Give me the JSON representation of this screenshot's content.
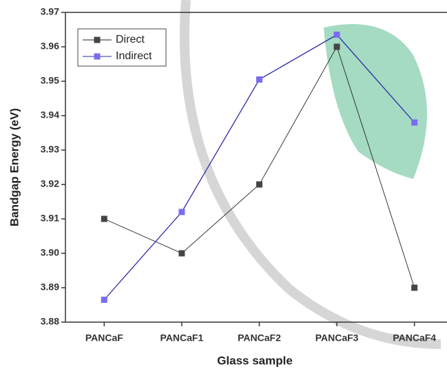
{
  "chart_data": {
    "type": "line",
    "x_label": "Glass sample",
    "y_label": "Bandgap Energy (eV)",
    "categories": [
      "PANCaF",
      "PANCaF1",
      "PANCaF2",
      "PANCaF3",
      "PANCaF4"
    ],
    "series": [
      {
        "name": "Direct",
        "color": "#454545",
        "line_color": "#222222",
        "values": [
          3.91,
          3.9,
          3.92,
          3.96,
          3.89
        ]
      },
      {
        "name": "Indirect",
        "color": "#7a6cf0",
        "line_color": "#2a2aa8",
        "values": [
          3.8865,
          3.912,
          3.9505,
          3.9635,
          3.938
        ]
      }
    ],
    "ylim": [
      3.88,
      3.97
    ],
    "yticks": [
      3.88,
      3.89,
      {
        "value": 3.9,
        "label": "3.90"
      },
      3.91,
      3.92,
      3.93,
      3.94,
      3.95,
      3.96,
      3.97
    ],
    "legend": "upper left"
  }
}
